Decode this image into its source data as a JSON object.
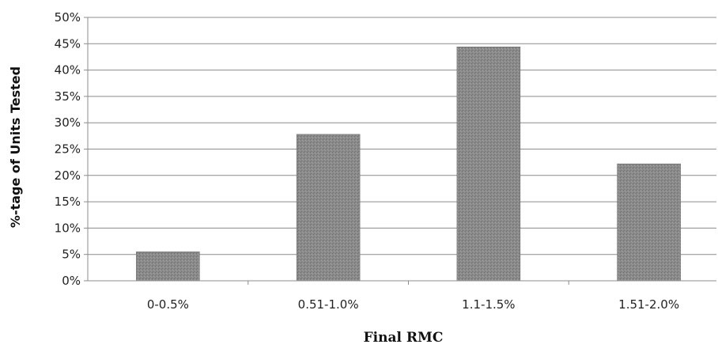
{
  "chart_data": {
    "type": "bar",
    "title": "",
    "xlabel": "Final RMC",
    "ylabel": "%-tage of Units Tested",
    "categories": [
      "0-0.5%",
      "0.51-1.0%",
      "1.1-1.5%",
      "1.51-2.0%"
    ],
    "values": [
      5.5,
      27.8,
      44.4,
      22.2
    ],
    "ylim": [
      0,
      50
    ],
    "yticks": [
      0,
      5,
      10,
      15,
      20,
      25,
      30,
      35,
      40,
      45,
      50
    ],
    "ytick_labels": [
      "0%",
      "5%",
      "10%",
      "15%",
      "20%",
      "25%",
      "30%",
      "35%",
      "40%",
      "45%",
      "50%"
    ],
    "grid": true,
    "legend": "none",
    "bar_color": "#808080"
  }
}
